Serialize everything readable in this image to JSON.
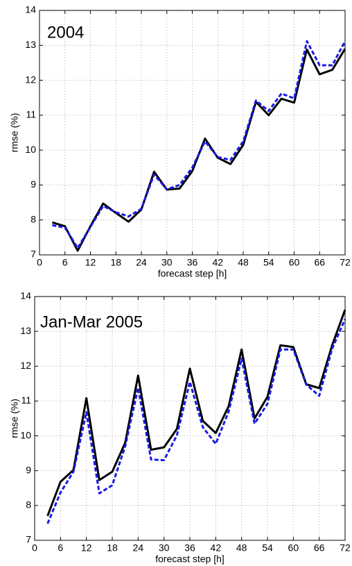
{
  "chart_data": [
    {
      "type": "line",
      "annotation": "2004",
      "xlabel": "forecast step [h]",
      "ylabel": "rmse (%)",
      "x": [
        3,
        6,
        9,
        12,
        15,
        18,
        21,
        24,
        27,
        30,
        33,
        36,
        39,
        42,
        45,
        48,
        51,
        54,
        57,
        60,
        63,
        66,
        69,
        72
      ],
      "series": [
        {
          "color": "#000000",
          "style": "solid",
          "values": [
            7.93,
            7.82,
            7.12,
            7.82,
            8.47,
            8.2,
            7.95,
            8.3,
            9.38,
            8.87,
            8.9,
            9.4,
            10.33,
            9.78,
            9.6,
            10.15,
            11.38,
            11.0,
            11.47,
            11.36,
            12.88,
            12.17,
            12.3,
            12.9
          ]
        },
        {
          "color": "#1a1ae6",
          "style": "dashed",
          "values": [
            7.85,
            7.78,
            7.2,
            7.8,
            8.4,
            8.22,
            8.1,
            8.32,
            9.3,
            8.88,
            9.0,
            9.5,
            10.25,
            9.8,
            9.72,
            10.25,
            11.42,
            11.12,
            11.62,
            11.48,
            13.12,
            12.43,
            12.43,
            13.12
          ]
        }
      ],
      "xlim": [
        0,
        72
      ],
      "xticks": [
        0,
        6,
        12,
        18,
        24,
        30,
        36,
        42,
        48,
        54,
        60,
        66,
        72
      ],
      "ylim": [
        7,
        14
      ],
      "yticks": [
        7,
        8,
        9,
        10,
        11,
        12,
        13,
        14
      ],
      "grid": true
    },
    {
      "type": "line",
      "annotation": "Jan-Mar 2005",
      "xlabel": "forecast step [h]",
      "ylabel": "rmse (%)",
      "x": [
        3,
        6,
        9,
        12,
        15,
        18,
        21,
        24,
        27,
        30,
        33,
        36,
        39,
        42,
        45,
        48,
        51,
        54,
        57,
        60,
        63,
        66,
        69,
        72
      ],
      "series": [
        {
          "color": "#000000",
          "style": "solid",
          "values": [
            7.7,
            8.68,
            9.02,
            11.08,
            8.73,
            8.97,
            9.8,
            11.73,
            9.6,
            9.67,
            10.2,
            11.93,
            10.43,
            10.08,
            10.85,
            12.48,
            10.5,
            11.12,
            12.6,
            12.55,
            11.48,
            11.37,
            12.6,
            13.62
          ]
        },
        {
          "color": "#1a1ae6",
          "style": "dashed",
          "values": [
            7.48,
            8.37,
            8.97,
            10.68,
            8.35,
            8.58,
            9.7,
            11.38,
            9.32,
            9.3,
            10.02,
            11.55,
            10.25,
            9.77,
            10.7,
            12.22,
            10.35,
            10.92,
            12.48,
            12.48,
            11.47,
            11.15,
            12.5,
            13.35
          ]
        }
      ],
      "xlim": [
        0,
        72
      ],
      "xticks": [
        0,
        6,
        12,
        18,
        24,
        30,
        36,
        42,
        48,
        54,
        60,
        66,
        72
      ],
      "ylim": [
        7,
        14
      ],
      "yticks": [
        7,
        8,
        9,
        10,
        11,
        12,
        13,
        14
      ],
      "grid": true
    }
  ]
}
